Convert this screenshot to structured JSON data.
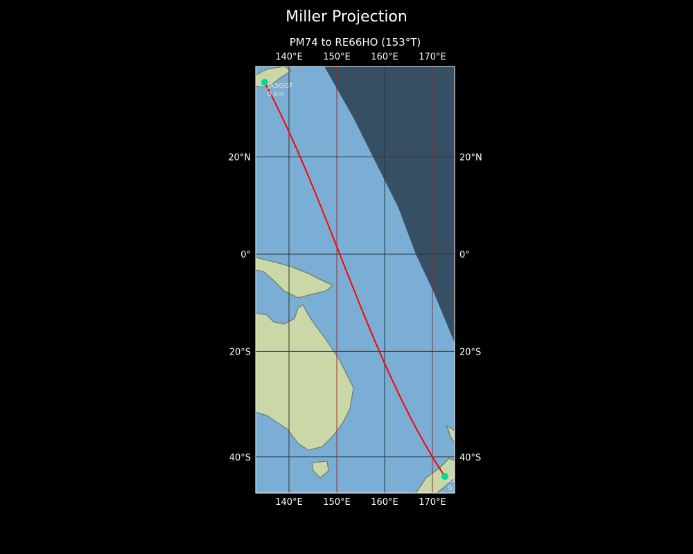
{
  "title": "Miller Projection",
  "subtitle": "PM74 to RE66HO (153°T)",
  "map": {
    "projection": "Miller",
    "extent": {
      "lon": [
        133.0,
        174.6
      ],
      "lat": [
        -46.5,
        37.5
      ]
    },
    "lon_ticks": [
      {
        "value": 140,
        "label": "140°E"
      },
      {
        "value": 150,
        "label": "150°E"
      },
      {
        "value": 160,
        "label": "160°E"
      },
      {
        "value": 170,
        "label": "170°E"
      }
    ],
    "lat_ticks": [
      {
        "value": 20,
        "label": "20°N"
      },
      {
        "value": 0,
        "label": "0°"
      },
      {
        "value": -20,
        "label": "20°S"
      },
      {
        "value": -40,
        "label": "40°S"
      }
    ],
    "colors": {
      "ocean": "#7aaed4",
      "land": "#c9d8a6",
      "night": "#2b3e4f",
      "path": "#ff0000",
      "marker": "#00d9a0",
      "meridian": "#b22222",
      "grid": "#333333"
    },
    "points": [
      {
        "call": "JA3GGF",
        "dist": "0 km",
        "lon": 134.9,
        "lat": 34.4
      },
      {
        "call": "ZL3TUX",
        "dist": "9,434 km",
        "lon": 172.6,
        "lat": -43.4
      }
    ],
    "red_meridians": [
      150,
      170
    ]
  }
}
